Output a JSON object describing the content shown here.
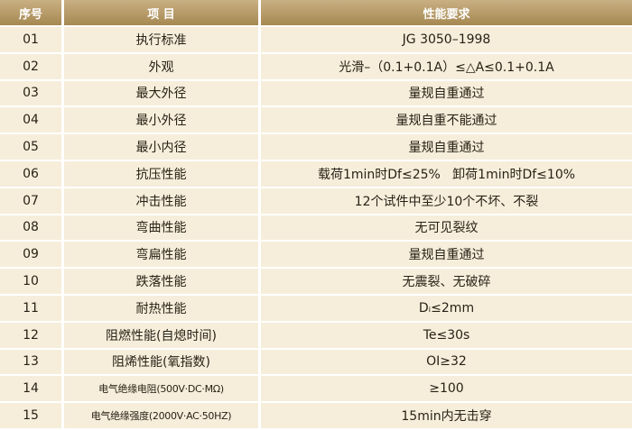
{
  "table": {
    "header": [
      "序号",
      "项 目",
      "性能要求"
    ],
    "rows": [
      [
        "01",
        "执行标准",
        "JG 3050–1998"
      ],
      [
        "02",
        "外观",
        "光滑–（0.1+0.1A）≤△A≤0.1+0.1A"
      ],
      [
        "03",
        "最大外径",
        "量规自重通过"
      ],
      [
        "04",
        "最小外径",
        "量规自重不能通过"
      ],
      [
        "05",
        "最小内径",
        "量规自重通过"
      ],
      [
        "06",
        "抗压性能",
        "载荷1min时Df≤25%   卸荷1min时Df≤10%"
      ],
      [
        "07",
        "冲击性能",
        "12个试件中至少10个不坏、不裂"
      ],
      [
        "08",
        "弯曲性能",
        "无可见裂纹"
      ],
      [
        "09",
        "弯扁性能",
        "量规自重通过"
      ],
      [
        "10",
        "跌落性能",
        "无震裂、无破碎"
      ],
      [
        "11",
        "耐热性能",
        "Dᵢ≤2mm"
      ],
      [
        "12",
        "阻燃性能(自熄时间)",
        "Te≤30s"
      ],
      [
        "13",
        "阻烯性能(氧指数)",
        "OI≥32"
      ],
      [
        "14",
        "电气绝缘电阻(500V·DC·MΩ)",
        "≥100"
      ],
      [
        "15",
        "电气绝缘强度(2000V·AC·50HZ)",
        "15min内无击穿"
      ]
    ]
  }
}
